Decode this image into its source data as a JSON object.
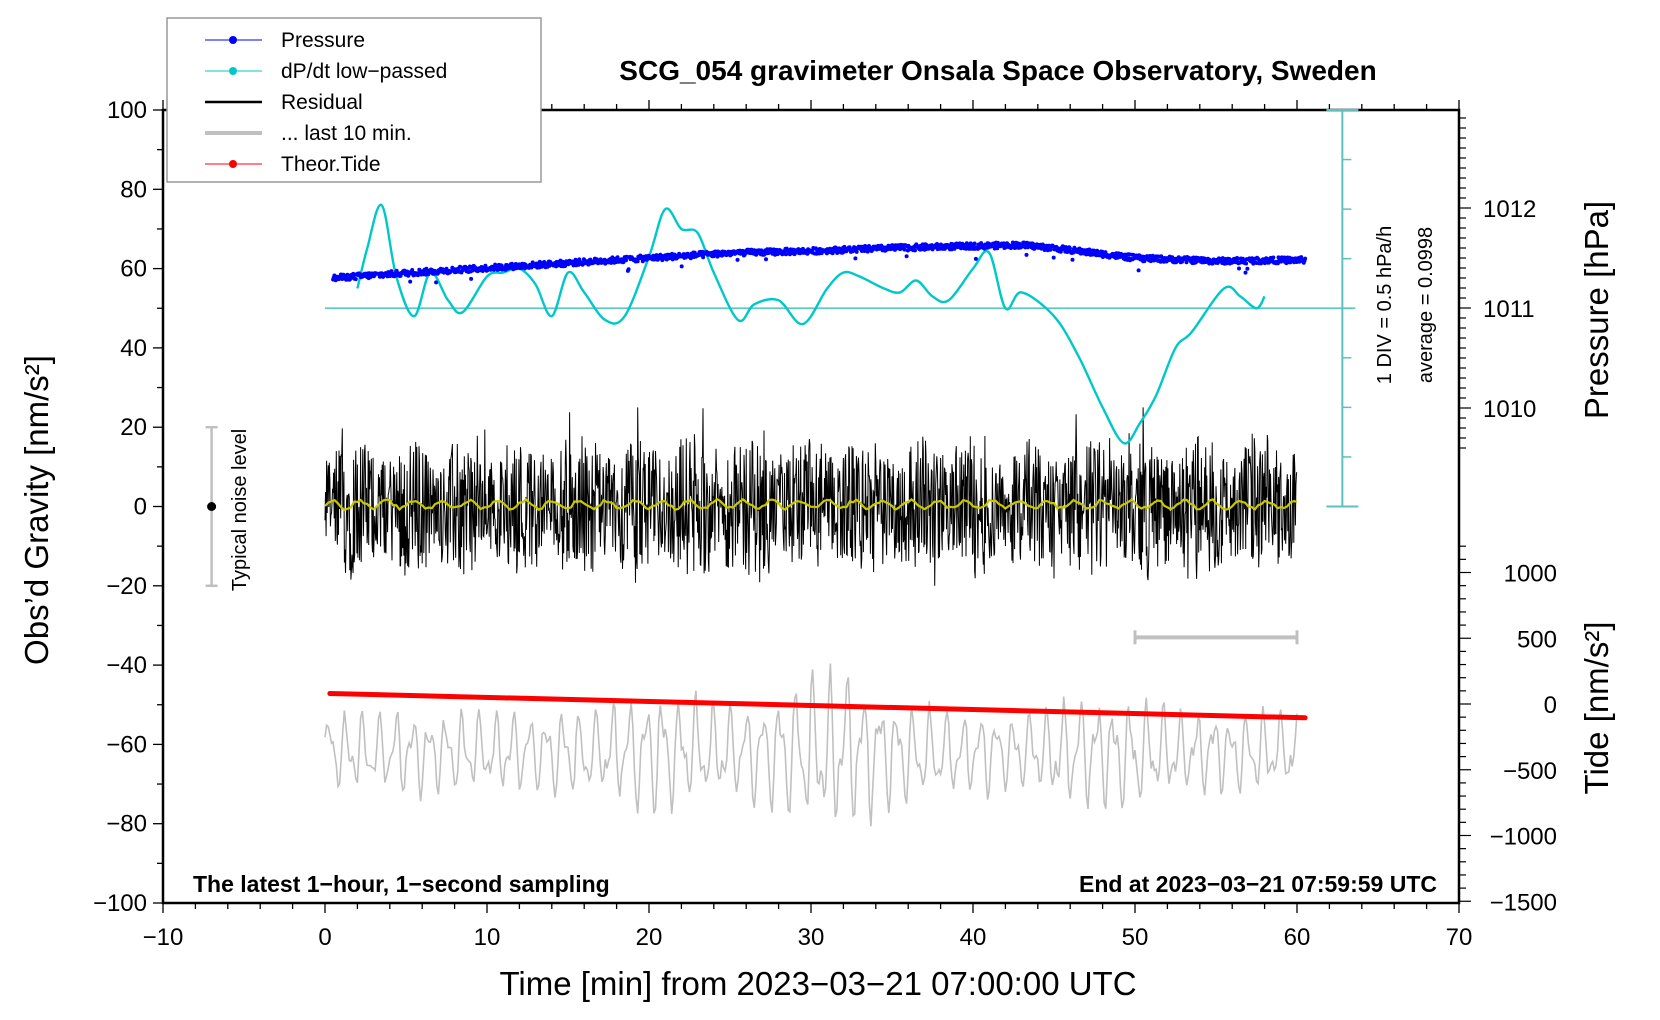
{
  "chart_data": {
    "type": "line",
    "title": "SCG_054 gravimeter Onsala Space Observatory, Sweden",
    "xlabel": "Time [min] from 2023−03−21 07:00:00 UTC",
    "ylabel_left": "Obs’d Gravity [nm/s²]",
    "ylabel_right_pressure": "Pressure [hPa]",
    "ylabel_right_tide": "Tide [nm/s²]",
    "xlim": [
      -10,
      70
    ],
    "ylim": [
      -100,
      100
    ],
    "x_ticks": [
      -10,
      0,
      10,
      20,
      30,
      40,
      50,
      60,
      70
    ],
    "x_tick_labels": [
      "−10",
      "0",
      "10",
      "20",
      "30",
      "40",
      "50",
      "60",
      "70"
    ],
    "y_ticks": [
      -100,
      -80,
      -60,
      -40,
      -20,
      0,
      20,
      40,
      60,
      80,
      100
    ],
    "y_tick_labels": [
      "−100",
      "−80",
      "−60",
      "−40",
      "−20",
      "0",
      "20",
      "40",
      "60",
      "80",
      "100"
    ],
    "pressure_axis": {
      "ticks": [
        1010,
        1011,
        1012
      ],
      "tick_labels": [
        "1010",
        "1011",
        "1012"
      ],
      "gravity_equiv": {
        "1010": 25,
        "1011": 50,
        "1012": 75
      }
    },
    "tide_axis": {
      "ticks": [
        -1500,
        -1000,
        -500,
        0,
        500,
        1000
      ],
      "tick_labels": [
        "−1500",
        "−1000",
        "−500",
        "0",
        "500",
        "1000"
      ],
      "range": [
        -1500,
        1500
      ]
    },
    "legend": {
      "placement": "top-left",
      "entries": [
        {
          "label": "Pressure",
          "color": "#0000ff",
          "marker": true
        },
        {
          "label": "dP/dt low−passed",
          "color": "#00c8c8",
          "marker": true
        },
        {
          "label": "Residual",
          "color": "#000000",
          "marker": false
        },
        {
          "label": "... last 10 min.",
          "color": "#c0c0c0",
          "marker": false
        },
        {
          "label": "Theor.Tide",
          "color": "#ff0000",
          "marker": true
        }
      ]
    },
    "series": [
      {
        "name": "Pressure",
        "unit": "hPa",
        "color": "#0000ff",
        "x": [
          0.5,
          5,
          10,
          15,
          20,
          25,
          30,
          35,
          40,
          43,
          45,
          50,
          55,
          60.5
        ],
        "values": [
          1011.3,
          1011.35,
          1011.4,
          1011.45,
          1011.5,
          1011.55,
          1011.57,
          1011.6,
          1011.62,
          1011.63,
          1011.6,
          1011.5,
          1011.47,
          1011.48
        ]
      },
      {
        "name": "dP/dt low-passed",
        "unit": "gravity-axis units (scale 1 DIV = 0.5 hPa/h, zero line at 50)",
        "color": "#00c8c8",
        "x": [
          2,
          2.6,
          3.5,
          4.4,
          5.5,
          6.5,
          7.6,
          8.5,
          10,
          11,
          12,
          13,
          14,
          15,
          16,
          17.3,
          18.5,
          20,
          21,
          22,
          23,
          24,
          25.5,
          26.5,
          28,
          29.5,
          31,
          32,
          33,
          34.5,
          35.5,
          36.5,
          37.5,
          38.5,
          40,
          41,
          42,
          43,
          45,
          46.5,
          48,
          49.3,
          50.3,
          51.3,
          52.5,
          53.5,
          55.5,
          56.5,
          57.5,
          58
        ],
        "values": [
          55,
          65,
          76,
          58,
          48,
          59,
          52,
          49,
          58,
          59,
          60,
          56,
          48,
          59,
          54,
          47,
          48,
          63,
          75,
          70,
          69,
          59,
          47,
          51,
          52,
          46,
          55,
          59,
          58,
          55,
          54,
          57,
          53,
          52,
          60,
          64,
          50,
          54,
          48,
          38,
          25,
          16,
          21,
          28,
          40,
          44,
          55,
          53,
          50,
          53
        ]
      },
      {
        "name": "Residual",
        "unit": "nm/s²",
        "color": "#000000",
        "x_range": [
          0,
          60
        ],
        "amplitude": 15,
        "peak_range": [
          -20,
          25
        ]
      },
      {
        "name": "Residual smoothed",
        "unit": "nm/s²",
        "color": "#c8c800",
        "x_range": [
          0,
          60
        ],
        "mean": 0.5
      },
      {
        "name": "... last 10 min.",
        "unit": "nm/s² (offset, time-expanded over 0–60)",
        "color": "#c0c0c0",
        "x_range": [
          0,
          60
        ],
        "baseline": -62,
        "amplitude_range": [
          -82,
          -38
        ]
      },
      {
        "name": "Theor.Tide",
        "unit": "nm/s² on tide axis",
        "color": "#ff0000",
        "x": [
          0.3,
          60.5
        ],
        "values": [
          80,
          -105
        ]
      }
    ],
    "annotations": [
      {
        "text": "Typical noise level",
        "x": -7,
        "y": 0,
        "range": [
          -20,
          20
        ],
        "color": "#c0c0c0"
      },
      {
        "text": "1 DIV = 0.5 hPa/h",
        "rotation": -90
      },
      {
        "text": "average = 0.0998",
        "rotation": -90
      },
      {
        "text": "The latest 1−hour, 1−second sampling",
        "position": "bottom-left",
        "bold": true
      },
      {
        "text": "End at 2023−03−21 07:59:59 UTC",
        "position": "bottom-right",
        "bold": true
      },
      {
        "type": "bar",
        "label": "last 10 min span",
        "x_range": [
          50,
          60
        ],
        "y": -33,
        "color": "#c0c0c0"
      }
    ],
    "dpdt_scale": {
      "divisions": 8,
      "div_value_hPa_per_h": 0.5,
      "zero_at_gravity": 50,
      "x": 62.8,
      "y_range": [
        0,
        100
      ]
    },
    "grid": false
  }
}
